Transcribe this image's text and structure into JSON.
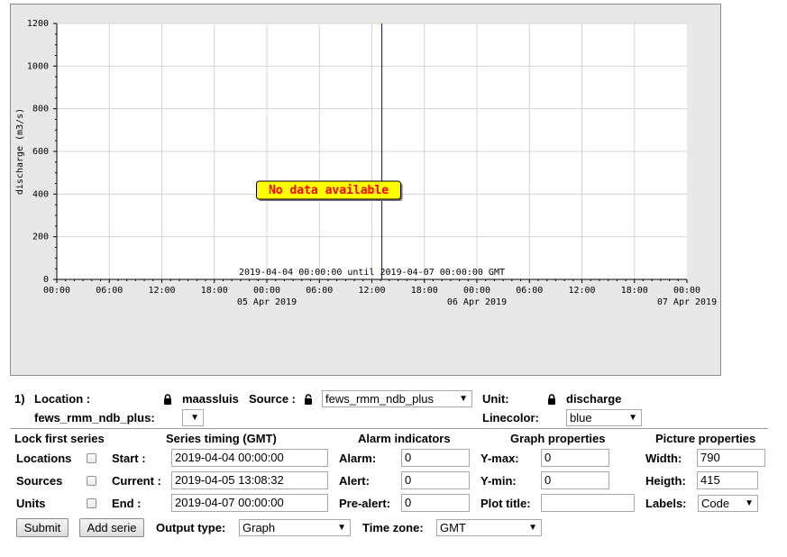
{
  "chart_data": {
    "type": "line",
    "title": "",
    "ylabel": "discharge (m3/s)",
    "xlabel": "",
    "ylim": [
      0,
      1200
    ],
    "yticks": [
      "0",
      "200",
      "400",
      "600",
      "800",
      "1000",
      "1200"
    ],
    "xticks": [
      "00:00",
      "06:00",
      "12:00",
      "18:00",
      "00:00",
      "06:00",
      "12:00",
      "18:00",
      "00:00",
      "06:00",
      "12:00",
      "18:00",
      "00:00"
    ],
    "date_labels": [
      {
        "label": "05 Apr 2019",
        "tick_index": 4
      },
      {
        "label": "06 Apr 2019",
        "tick_index": 8
      },
      {
        "label": "07 Apr 2019",
        "tick_index": 12
      }
    ],
    "grid": true,
    "period_text": "2019-04-04 00:00:00 until 2019-04-07 00:00:00 GMT",
    "no_data_text": "No data available",
    "current_time_marker": "2019-04-05 13:08:32",
    "series": []
  },
  "colors": {
    "plot_background": "#ffffff",
    "panel_background": "#e8e8e8",
    "current_time_line": "#0000cc",
    "no_data_box": "#ffff00",
    "no_data_text": "#ff0000"
  },
  "series_row": {
    "index": "1)",
    "location_label": "Location :",
    "location_value": "maassluis",
    "location_sub": "fews_rmm_ndb_plus:",
    "source_label": "Source :",
    "source_value": "fews_rmm_ndb_plus",
    "unit_label": "Unit:",
    "unit_value": "discharge",
    "linecolor_label": "Linecolor:",
    "linecolor_value": "blue"
  },
  "sections": {
    "lock": "Lock first series",
    "timing": "Series timing (GMT)",
    "alarm": "Alarm indicators",
    "graph": "Graph properties",
    "picture": "Picture properties"
  },
  "lock": {
    "locations": "Locations",
    "sources": "Sources",
    "units": "Units"
  },
  "timing": {
    "start_label": "Start :",
    "start_value": "2019-04-04 00:00:00",
    "current_label": "Current :",
    "current_value": "2019-04-05 13:08:32",
    "end_label": "End :",
    "end_value": "2019-04-07 00:00:00"
  },
  "alarm": {
    "alarm_label": "Alarm:",
    "alarm_value": "0",
    "alert_label": "Alert:",
    "alert_value": "0",
    "prealert_label": "Pre-alert:",
    "prealert_value": "0"
  },
  "graph": {
    "ymax_label": "Y-max:",
    "ymax_value": "0",
    "ymin_label": "Y-min:",
    "ymin_value": "0",
    "plottitle_label": "Plot title:",
    "plottitle_value": ""
  },
  "picture": {
    "width_label": "Width:",
    "width_value": "790",
    "height_label": "Heigth:",
    "height_value": "415",
    "labels_label": "Labels:",
    "labels_value": "Code"
  },
  "bottom": {
    "submit": "Submit",
    "add_serie": "Add serie",
    "output_label": "Output type:",
    "output_value": "Graph",
    "timezone_label": "Time zone:",
    "timezone_value": "GMT"
  }
}
